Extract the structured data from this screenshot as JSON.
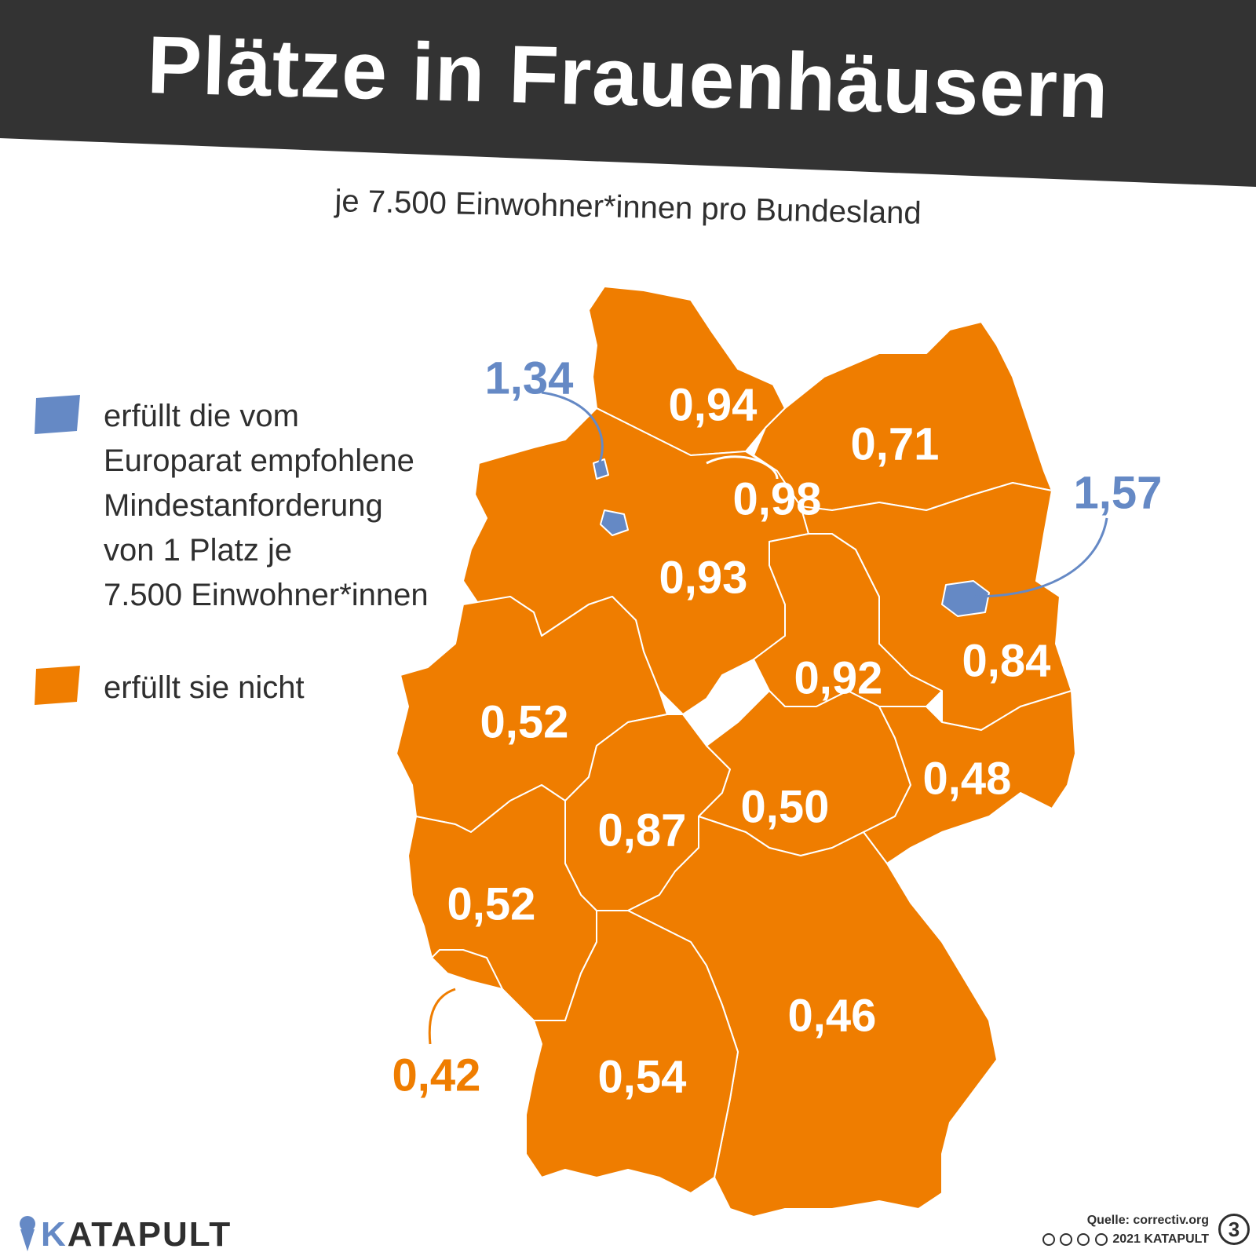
{
  "header": {
    "title": "Plätze in Frauenhäusern",
    "subtitle": "je 7.500 Einwohner*innen pro Bundesland"
  },
  "legend": {
    "fulfilled": "erfüllt die vom Europarat empfohlene Mindestanforderung von 1 Platz je 7.500 Einwohner*innen",
    "fulfilled_lines": [
      "erfüllt die vom",
      "Europarat empfohlene",
      "Mindestanforderung",
      "von 1 Platz je",
      "7.500 Einwohner*innen"
    ],
    "not_fulfilled": "erfüllt sie nicht"
  },
  "colors": {
    "fulfilled": "#6589c5",
    "not_fulfilled": "#ef7d00",
    "header_bg": "#333333",
    "border": "#ffffff"
  },
  "map": {
    "values": [
      {
        "id": "hamburg",
        "value": "1,34",
        "fulfilled": true
      },
      {
        "id": "schleswig-holstein",
        "value": "0,94",
        "fulfilled": false
      },
      {
        "id": "mecklenburg-vorpommern",
        "value": "0,71",
        "fulfilled": false
      },
      {
        "id": "bremen",
        "value": "0,98",
        "fulfilled": false
      },
      {
        "id": "berlin",
        "value": "1,57",
        "fulfilled": true
      },
      {
        "id": "niedersachsen",
        "value": "0,93",
        "fulfilled": false
      },
      {
        "id": "sachsen-anhalt",
        "value": "0,92",
        "fulfilled": false
      },
      {
        "id": "brandenburg",
        "value": "0,84",
        "fulfilled": false
      },
      {
        "id": "nordrhein-westfalen",
        "value": "0,52",
        "fulfilled": false
      },
      {
        "id": "sachsen",
        "value": "0,48",
        "fulfilled": false
      },
      {
        "id": "thueringen",
        "value": "0,50",
        "fulfilled": false
      },
      {
        "id": "hessen",
        "value": "0,87",
        "fulfilled": false
      },
      {
        "id": "rheinland-pfalz",
        "value": "0,52",
        "fulfilled": false
      },
      {
        "id": "bayern",
        "value": "0,46",
        "fulfilled": false
      },
      {
        "id": "saarland",
        "value": "0,42",
        "fulfilled": false
      },
      {
        "id": "baden-wuerttemberg",
        "value": "0,54",
        "fulfilled": false
      }
    ]
  },
  "footer": {
    "brand": "KATAPULT",
    "brand_first": "K",
    "brand_rest": "ATAPULT",
    "source": "Quelle: correctiv.org",
    "license": "2021 KATAPULT",
    "issue_badge": "3"
  }
}
